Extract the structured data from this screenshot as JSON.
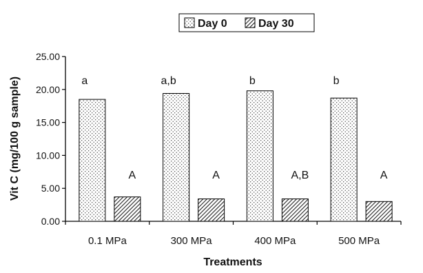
{
  "chart_data": {
    "type": "bar",
    "categories": [
      "0.1 MPa",
      "300 MPa",
      "400 MPa",
      "500 MPa"
    ],
    "series": [
      {
        "name": "Day 0",
        "values": [
          18.5,
          19.4,
          19.8,
          18.7
        ],
        "annotations": [
          "a",
          "a,b",
          "b",
          "b"
        ],
        "pattern": "dotted"
      },
      {
        "name": "Day 30",
        "values": [
          3.7,
          3.4,
          3.4,
          3.0
        ],
        "annotations": [
          "A",
          "A",
          "A,B",
          "A"
        ],
        "pattern": "hatched"
      }
    ],
    "xlabel": "Treatments",
    "ylabel": "Vit C (mg/100 g sample)",
    "ylim": [
      0,
      25
    ],
    "yticks": [
      "0.00",
      "5.00",
      "10.00",
      "15.00",
      "20.00",
      "25.00"
    ],
    "ytick_values": [
      0,
      5,
      10,
      15,
      20,
      25
    ],
    "grid": false,
    "legend_position": "top-center"
  }
}
